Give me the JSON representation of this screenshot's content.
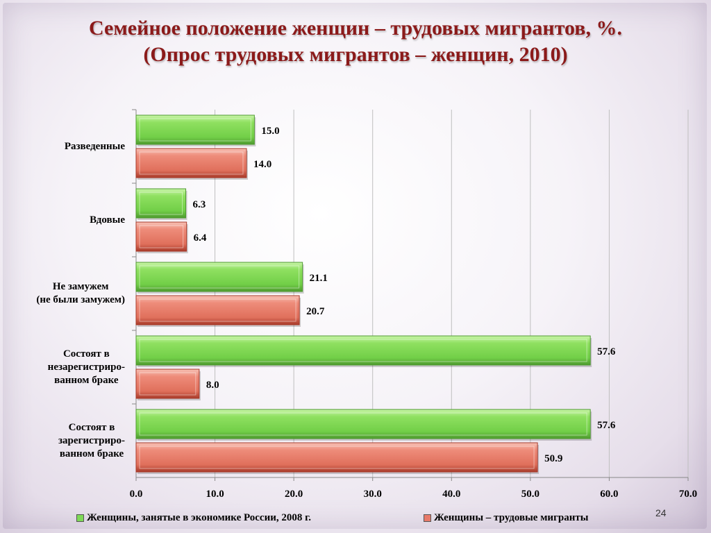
{
  "slide": {
    "title_line1": "Семейное положение женщин – трудовых мигрантов, %.",
    "title_line2": "(Опрос трудовых мигрантов – женщин, 2010)",
    "page_number": "24"
  },
  "colors": {
    "green": "#7ed957",
    "green_dark": "#4e9a2f",
    "red": "#e87a6a",
    "red_dark": "#a83a2a"
  },
  "chart_data": {
    "type": "bar",
    "orientation": "horizontal",
    "categories": [
      "Разведенные",
      "Вдовые",
      "Не замужем\n(не были замужем)",
      "Состоят в\nнезарегистриро-\nванном браке",
      "Состоят в\nзарегистриро-\nванном браке"
    ],
    "series": [
      {
        "name": "Женщины, занятые в экономике России, 2008 г.",
        "values": [
          15.0,
          6.3,
          21.1,
          57.6,
          57.6
        ]
      },
      {
        "name": "Женщины – трудовые мигранты",
        "values": [
          14.0,
          6.4,
          20.7,
          8.0,
          50.9
        ]
      }
    ],
    "xlim": [
      0,
      70
    ],
    "xticks": [
      "0.0",
      "10.0",
      "20.0",
      "30.0",
      "40.0",
      "50.0",
      "60.0",
      "70.0"
    ],
    "grid": true,
    "legend": "bottom",
    "data_labels": true
  }
}
